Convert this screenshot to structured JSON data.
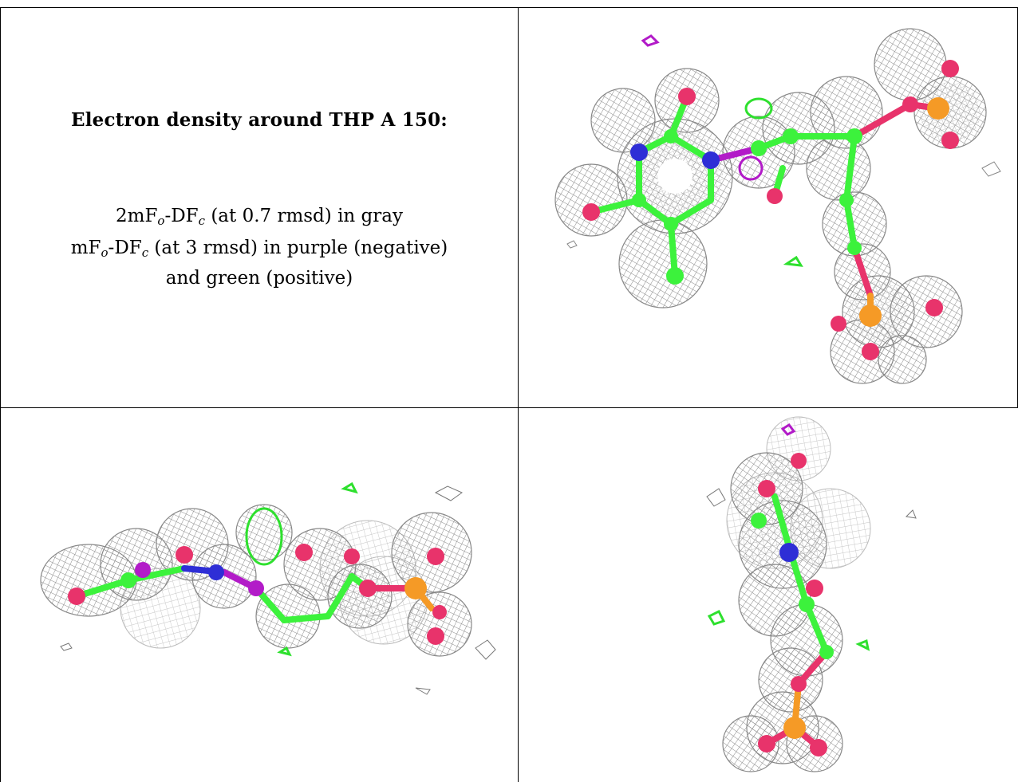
{
  "caption": {
    "title": "Electron density around THP A 150:",
    "line1": {
      "pre": "2mF",
      "sub_o": "o",
      "mid": "-DF",
      "sub_c": "c",
      "post": " (at 0.7 rmsd) in gray"
    },
    "line2": {
      "pre": "mF",
      "sub_o": "o",
      "mid": "-DF",
      "sub_c": "c",
      "post": " (at 3 rmsd) in purple (negative)"
    },
    "line3": "and green (positive)"
  },
  "colors": {
    "mesh": "#9a9a9a",
    "carbon": "#3cf23c",
    "oxygen": "#e8336b",
    "nitrogen": "#2e2ed6",
    "phosphorus": "#f59a26",
    "negative_density": "#b21bc8",
    "positive_density": "#2ee02e"
  },
  "panels": [
    {
      "view": "top-right"
    },
    {
      "view": "bottom-left"
    },
    {
      "view": "bottom-right"
    }
  ]
}
